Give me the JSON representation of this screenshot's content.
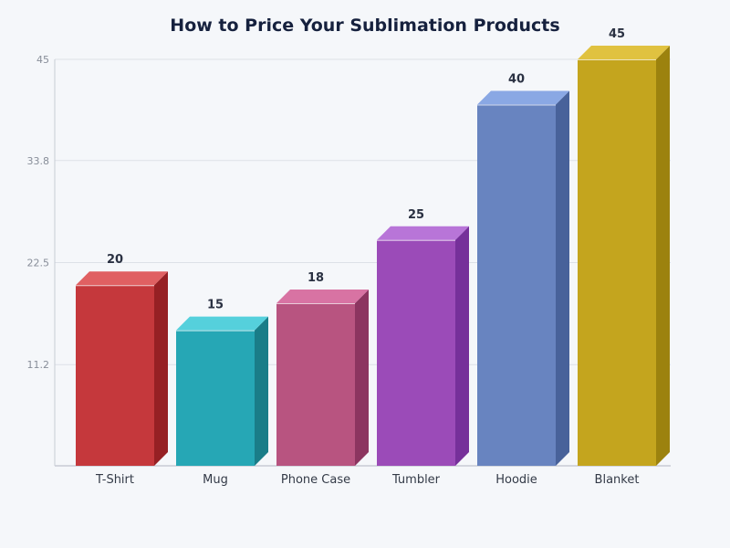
{
  "chart_data": {
    "type": "bar",
    "title": "How to Price Your Sublimation Products",
    "xlabel": "",
    "ylabel": "",
    "ylim": [
      0,
      45
    ],
    "yticks": [
      "11.2",
      "22.5",
      "33.8",
      "45"
    ],
    "grid": true,
    "categories": [
      "T-Shirt",
      "Mug",
      "Phone Case",
      "Tumbler",
      "Hoodie",
      "Blanket"
    ],
    "values": [
      20,
      15,
      18,
      25,
      40,
      45
    ],
    "colors": [
      {
        "front": "#c5383c",
        "side": "#962024",
        "top": "#e06062"
      },
      {
        "front": "#26a7b5",
        "side": "#1a7d88",
        "top": "#55d0dc"
      },
      {
        "front": "#b85480",
        "side": "#8c3560",
        "top": "#d873a3"
      },
      {
        "front": "#9b4bb8",
        "side": "#76309a",
        "top": "#b875d8"
      },
      {
        "front": "#6884c0",
        "side": "#48629a",
        "top": "#8aa8e4"
      },
      {
        "front": "#c4a51e",
        "side": "#9c820e",
        "top": "#e0c240"
      }
    ]
  }
}
